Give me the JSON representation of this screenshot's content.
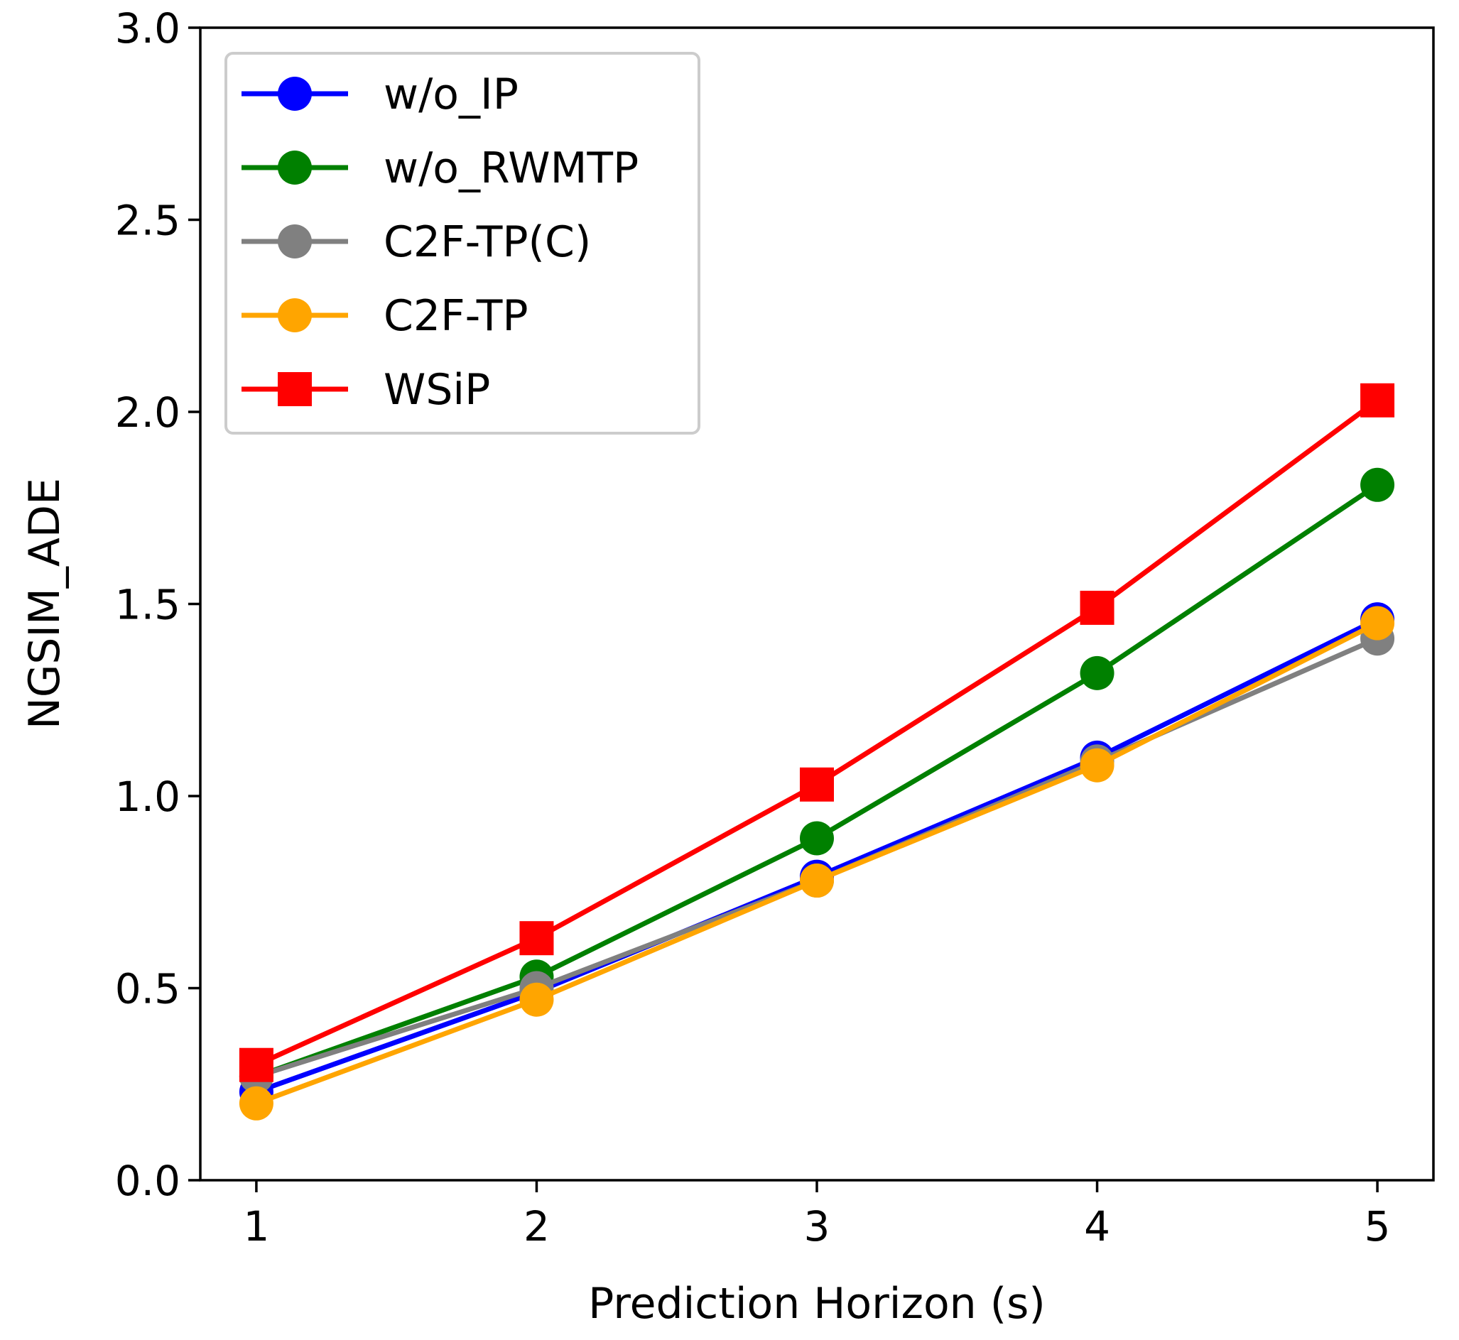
{
  "chart_data": {
    "type": "line",
    "title": "",
    "xlabel": "Prediction Horizon (s)",
    "ylabel": "NGSIM_ADE",
    "x": [
      1,
      2,
      3,
      4,
      5
    ],
    "x_tick_labels": [
      "1",
      "2",
      "3",
      "4",
      "5"
    ],
    "ylim": [
      0.0,
      3.0
    ],
    "y_ticks": [
      0.0,
      0.5,
      1.0,
      1.5,
      2.0,
      2.5,
      3.0
    ],
    "y_tick_labels": [
      "0.0",
      "0.5",
      "1.0",
      "1.5",
      "2.0",
      "2.5",
      "3.0"
    ],
    "grid": false,
    "legend_location": "upper-left",
    "series": [
      {
        "name": "w/o_IP",
        "color": "#0000ff",
        "marker": "circle",
        "values": [
          0.23,
          0.49,
          0.79,
          1.1,
          1.46
        ]
      },
      {
        "name": "w/o_RWMTP",
        "color": "#008000",
        "marker": "circle",
        "values": [
          0.27,
          0.53,
          0.89,
          1.32,
          1.81
        ]
      },
      {
        "name": "C2F-TP(C)",
        "color": "#808080",
        "marker": "circle",
        "values": [
          0.27,
          0.5,
          0.78,
          1.09,
          1.41
        ]
      },
      {
        "name": "C2F-TP",
        "color": "#ffa500",
        "marker": "circle",
        "values": [
          0.2,
          0.47,
          0.78,
          1.08,
          1.45
        ]
      },
      {
        "name": "WSiP",
        "color": "#ff0000",
        "marker": "square",
        "values": [
          0.3,
          0.63,
          1.03,
          1.49,
          2.03
        ]
      }
    ]
  }
}
